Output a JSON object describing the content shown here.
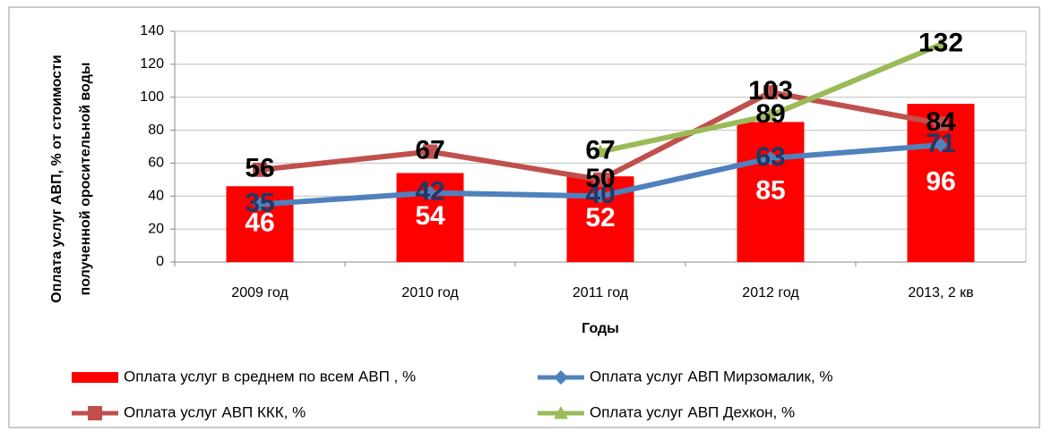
{
  "chart_data": {
    "type": "bar",
    "ylabel": [
      "Оплата услуг АВП, % от стоимости",
      "полученной оросительной воды"
    ],
    "xlabel": "Годы",
    "categories": [
      "2009 год",
      "2010 год",
      "2011 год",
      "2012 год",
      "2013, 2 кв"
    ],
    "ylim": [
      0,
      140
    ],
    "yticks": [
      0,
      20,
      40,
      60,
      80,
      100,
      120,
      140
    ],
    "grid": true,
    "series": [
      {
        "name": "Оплата услуг в среднем по всем АВП , %",
        "type": "bar",
        "color": "#ff0000",
        "label_color": "#ffffff",
        "values": [
          46,
          54,
          52,
          85,
          96
        ]
      },
      {
        "name": "Оплата услуг АВП Мирзомалик, %",
        "type": "line",
        "marker": "diamond",
        "color": "#4f81bd",
        "label_color": "#1f3864",
        "values": [
          35,
          42,
          40,
          63,
          71
        ]
      },
      {
        "name": "Оплата услуг АВП ККК, %",
        "type": "line",
        "marker": "square",
        "color": "#c0504d",
        "label_color": "#000000",
        "values": [
          56,
          67,
          50,
          103,
          84
        ]
      },
      {
        "name": "Оплата услуг АВП Дехкон, %",
        "type": "line",
        "marker": "triangle",
        "color": "#9bbb59",
        "label_color": "#000000",
        "values": [
          null,
          null,
          67,
          89,
          132
        ]
      }
    ]
  }
}
